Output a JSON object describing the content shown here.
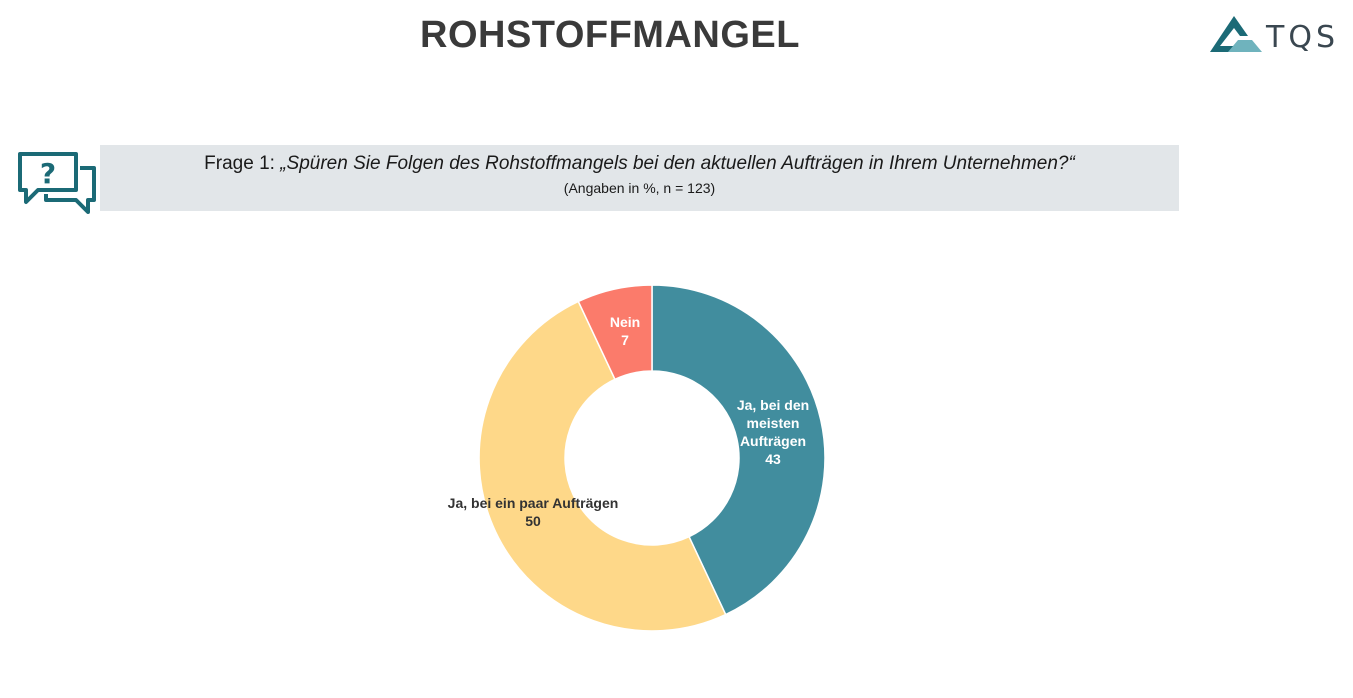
{
  "header": {
    "title": "ROHSTOFFMANGEL",
    "logo_text": "TQS"
  },
  "question": {
    "prefix": "Frage 1: ",
    "text": "„Spüren Sie Folgen des Rohstoffmangels bei den aktuellen Aufträgen in Ihrem Unternehmen?“",
    "note": "(Angaben in %, n = 123)"
  },
  "colors": {
    "teal": "#418d9e",
    "yellow": "#fed889",
    "salmon": "#fb7b6b",
    "icon": "#1b6a76"
  },
  "icons": {
    "question": "speech-bubbles-question-icon",
    "logo": "tqs-triangle-logo"
  },
  "chart_data": {
    "type": "pie",
    "donut": true,
    "categories": [
      "Ja, bei den meisten Aufträgen",
      "Ja, bei ein paar Aufträgen",
      "Nein"
    ],
    "values": [
      43,
      50,
      7
    ],
    "label_lines": [
      [
        "Ja, bei den",
        "meisten",
        "Aufträgen"
      ],
      [
        "Ja, bei ein paar Aufträgen"
      ],
      [
        "Nein"
      ]
    ],
    "colors": [
      "#418d9e",
      "#fed889",
      "#fb7b6b"
    ],
    "label_colors": [
      "#ffffff",
      "#333333",
      "#ffffff"
    ],
    "start_angle": "12 o'clock",
    "direction": "clockwise"
  }
}
